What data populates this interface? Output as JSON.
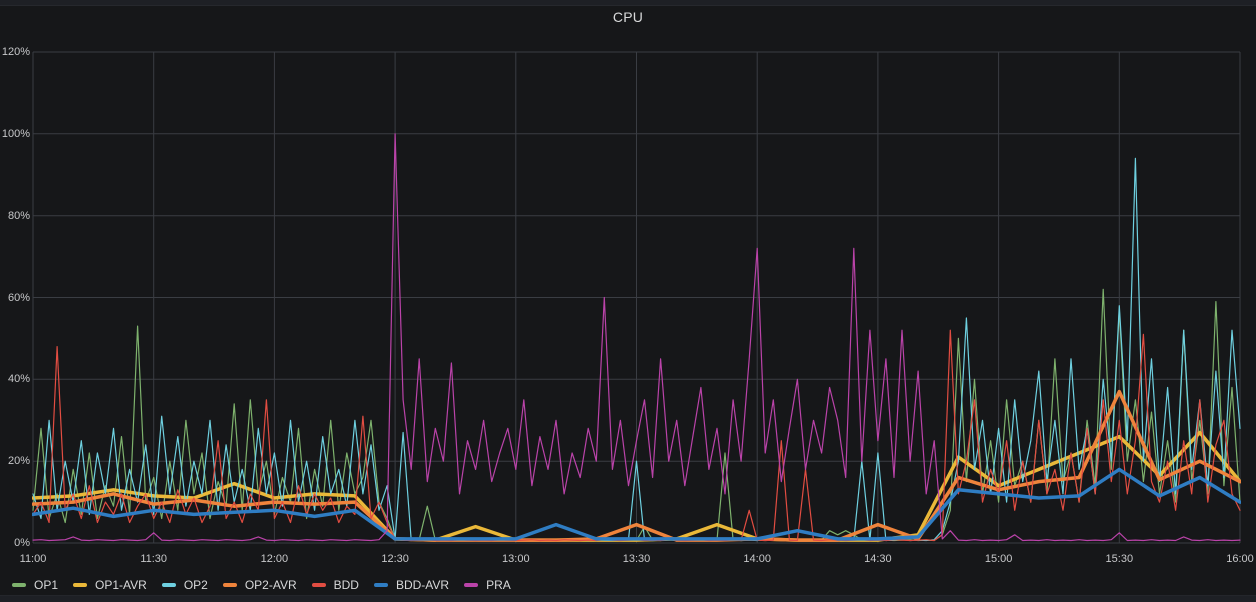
{
  "title": "CPU",
  "colors": {
    "background": "#161719",
    "grid": "#3a3d43",
    "axis_text": "#c7c8ca",
    "title_text": "#d8d9da"
  },
  "chart_data": {
    "type": "line",
    "title": "CPU",
    "xlabel": "",
    "ylabel": "",
    "ylim": [
      0,
      120
    ],
    "y_tick_values": [
      0,
      20,
      40,
      60,
      80,
      100,
      120
    ],
    "y_ticks": [
      "0%",
      "20%",
      "40%",
      "60%",
      "80%",
      "100%",
      "120%"
    ],
    "x_range_minutes": [
      0,
      300
    ],
    "x_tick_minutes": [
      0,
      30,
      60,
      90,
      120,
      150,
      180,
      210,
      240,
      270,
      300
    ],
    "x_ticks": [
      "11:00",
      "11:30",
      "12:00",
      "12:30",
      "13:00",
      "13:30",
      "14:00",
      "14:30",
      "15:00",
      "15:30",
      "16:00"
    ],
    "grid": true,
    "legend_position": "bottom-left",
    "unit": "percent",
    "series": [
      {
        "name": "OP1",
        "color": "#7EB26D",
        "width": 1.2,
        "x_start_min": 0,
        "x_step_min": 2,
        "values": [
          8,
          28,
          6,
          12,
          5,
          18,
          7,
          22,
          6,
          14,
          9,
          26,
          7,
          53,
          10,
          16,
          6,
          20,
          8,
          30,
          12,
          22,
          6,
          15,
          9,
          34,
          8,
          35,
          12,
          20,
          7,
          16,
          10,
          28,
          6,
          18,
          9,
          30,
          8,
          22,
          12,
          16,
          30,
          10,
          6,
          1,
          0.7,
          0.6,
          0.8,
          9,
          0.7,
          0.6,
          0.7,
          0.8,
          0.6,
          0.7,
          0.6,
          0.8,
          0.7,
          0.6,
          0.7,
          0.8,
          0.6,
          0.7,
          0.6,
          0.8,
          0.7,
          0.6,
          0.7,
          0.8,
          0.6,
          0.7,
          0.6,
          0.8,
          0.7,
          0.6,
          4,
          0.7,
          0.6,
          0.8,
          0.7,
          0.6,
          0.7,
          0.8,
          0.6,
          0.7,
          22,
          0.7,
          0.6,
          0.8,
          0.7,
          0.6,
          0.7,
          0.8,
          0.6,
          0.7,
          0.6,
          0.8,
          0.7,
          3,
          2,
          3,
          2,
          0.7,
          0.6,
          0.8,
          0.7,
          0.6,
          0.7,
          0.8,
          0.6,
          0.7,
          0.6,
          2,
          8,
          50,
          15,
          40,
          12,
          25,
          10,
          35,
          14,
          20,
          10,
          30,
          12,
          45,
          15,
          22,
          10,
          30,
          14,
          62,
          18,
          57,
          20,
          35,
          15,
          32,
          12,
          25,
          10,
          52,
          15,
          30,
          12,
          59,
          14,
          38,
          10
        ]
      },
      {
        "name": "OP1-AVR",
        "color": "#EAB839",
        "width": 3.5,
        "x_start_min": 0,
        "x_step_min": 10,
        "values": [
          11,
          11.5,
          13,
          11.5,
          11,
          14.5,
          11,
          12,
          11.5,
          1,
          0.7,
          4,
          0.7,
          0.7,
          0.7,
          0.7,
          1,
          4.5,
          1,
          0.7,
          0.7,
          0.7,
          2,
          21,
          14,
          18,
          22,
          26,
          16.5,
          27,
          15
        ]
      },
      {
        "name": "OP2",
        "color": "#6ED0E0",
        "width": 1.2,
        "x_start_min": 0,
        "x_step_min": 2,
        "values": [
          12,
          6,
          30,
          8,
          20,
          10,
          25,
          7,
          22,
          12,
          28,
          8,
          18,
          10,
          24,
          7,
          31,
          12,
          26,
          9,
          20,
          12,
          30,
          8,
          24,
          10,
          18,
          8,
          28,
          12,
          22,
          9,
          30,
          10,
          20,
          8,
          26,
          12,
          18,
          9,
          30,
          12,
          24,
          8,
          14,
          1,
          27,
          0.7,
          0.6,
          0.7,
          0.8,
          0.6,
          0.7,
          0.6,
          0.8,
          0.7,
          0.6,
          0.7,
          0.8,
          0.6,
          0.7,
          0.6,
          0.8,
          0.7,
          0.6,
          0.7,
          0.8,
          0.6,
          0.7,
          0.6,
          0.8,
          0.7,
          0.6,
          0.7,
          0.8,
          20,
          0.7,
          0.6,
          0.7,
          0.8,
          0.6,
          0.7,
          0.6,
          0.8,
          0.7,
          0.6,
          0.7,
          0.8,
          0.6,
          0.7,
          0.6,
          0.8,
          0.7,
          0.6,
          0.7,
          0.8,
          0.6,
          0.7,
          0.6,
          0.8,
          0.7,
          0.6,
          0.7,
          20,
          0.7,
          22,
          0.6,
          0.7,
          0.8,
          0.6,
          0.7,
          0.6,
          0.8,
          3,
          10,
          20,
          55,
          18,
          30,
          12,
          28,
          10,
          35,
          15,
          25,
          42,
          15,
          30,
          12,
          45,
          18,
          28,
          12,
          40,
          20,
          58,
          25,
          94,
          20,
          45,
          15,
          38,
          12,
          52,
          18,
          35,
          14,
          42,
          16,
          52,
          28
        ]
      },
      {
        "name": "OP2-AVR",
        "color": "#EF843C",
        "width": 3.5,
        "x_start_min": 0,
        "x_step_min": 10,
        "values": [
          9.5,
          10,
          12,
          9.5,
          10.5,
          9,
          10,
          9.5,
          10,
          1,
          0.7,
          0.7,
          0.7,
          0.7,
          1,
          4.5,
          0.7,
          0.7,
          1,
          0.7,
          0.7,
          4.5,
          1,
          16,
          13,
          15,
          16,
          37,
          15.5,
          20,
          15
        ]
      },
      {
        "name": "BDD",
        "color": "#E24D42",
        "width": 1.2,
        "x_start_min": 0,
        "x_step_min": 2,
        "values": [
          7,
          10,
          5,
          48,
          8,
          12,
          6,
          14,
          5,
          10,
          7,
          12,
          5,
          9,
          12,
          6,
          10,
          5,
          13,
          7,
          11,
          5,
          9,
          25,
          6,
          10,
          5,
          12,
          8,
          35,
          6,
          10,
          5,
          14,
          7,
          12,
          8,
          11,
          5,
          9,
          7,
          31,
          6,
          10,
          5,
          1,
          0.7,
          0.6,
          0.7,
          0.8,
          0.6,
          0.7,
          0.6,
          0.8,
          0.7,
          0.6,
          0.7,
          0.6,
          0.8,
          0.7,
          0.6,
          0.7,
          0.8,
          0.6,
          0.7,
          0.6,
          0.8,
          0.7,
          0.6,
          0.7,
          0.6,
          0.8,
          0.7,
          0.6,
          0.7,
          0.8,
          0.6,
          0.7,
          0.6,
          0.8,
          0.7,
          0.6,
          0.7,
          0.8,
          0.6,
          0.7,
          0.6,
          0.8,
          0.7,
          8,
          0.7,
          0.6,
          0.7,
          25,
          0.7,
          0.6,
          18,
          0.7,
          0.6,
          0.8,
          0.7,
          0.6,
          0.7,
          0.8,
          0.6,
          0.7,
          0.6,
          0.8,
          0.7,
          0.6,
          0.7,
          0.8,
          0.6,
          2,
          52,
          12,
          20,
          35,
          10,
          18,
          12,
          25,
          8,
          20,
          10,
          30,
          12,
          18,
          8,
          22,
          10,
          28,
          12,
          35,
          15,
          30,
          12,
          25,
          51,
          15,
          10,
          20,
          8,
          25,
          12,
          35,
          10,
          24,
          30,
          12,
          8
        ]
      },
      {
        "name": "BDD-AVR",
        "color": "#2F7DC3",
        "width": 3.5,
        "x_start_min": 0,
        "x_step_min": 10,
        "values": [
          7,
          8.5,
          6.5,
          8,
          7,
          7.5,
          8,
          6.5,
          8,
          1,
          1,
          1,
          1,
          4.5,
          1,
          1,
          1,
          1,
          1,
          3,
          1,
          1,
          1.5,
          13,
          12,
          11,
          11.5,
          18,
          11.5,
          16,
          10
        ]
      },
      {
        "name": "PRA",
        "color": "#BA43A9",
        "width": 1.2,
        "x_start_min": 0,
        "x_step_min": 2,
        "values": [
          0.7,
          0.8,
          0.6,
          0.7,
          0.8,
          1.5,
          0.7,
          0.6,
          0.8,
          0.7,
          0.6,
          0.8,
          0.7,
          0.6,
          0.8,
          2.5,
          0.7,
          0.6,
          0.8,
          0.7,
          0.6,
          0.8,
          0.7,
          0.6,
          0.8,
          0.7,
          0.6,
          0.8,
          1.5,
          0.7,
          0.6,
          0.8,
          0.7,
          0.6,
          0.8,
          0.7,
          0.6,
          0.8,
          0.7,
          0.6,
          0.8,
          0.7,
          0.6,
          0.8,
          3,
          100,
          35,
          18,
          45,
          15,
          28,
          20,
          44,
          12,
          25,
          18,
          30,
          15,
          22,
          28,
          18,
          35,
          14,
          26,
          18,
          30,
          12,
          22,
          16,
          28,
          20,
          60,
          18,
          30,
          14,
          25,
          35,
          16,
          45,
          20,
          30,
          14,
          26,
          38,
          18,
          28,
          12,
          35,
          20,
          45,
          72,
          22,
          35,
          15,
          28,
          40,
          18,
          30,
          22,
          38,
          30,
          16,
          72,
          20,
          52,
          25,
          45,
          16,
          52,
          20,
          42,
          12,
          25,
          1,
          3,
          0.7,
          0.6,
          0.8,
          0.6,
          0.7,
          0.6,
          0.8,
          2,
          0.6,
          0.7,
          0.6,
          0.8,
          0.6,
          0.7,
          0.6,
          0.8,
          0.6,
          0.7,
          0.6,
          0.8,
          2.5,
          0.6,
          0.7,
          0.6,
          0.8,
          0.6,
          0.7,
          0.6,
          1.5,
          0.7,
          0.6,
          0.8,
          0.6,
          0.7,
          0.6,
          0.7
        ]
      }
    ]
  }
}
